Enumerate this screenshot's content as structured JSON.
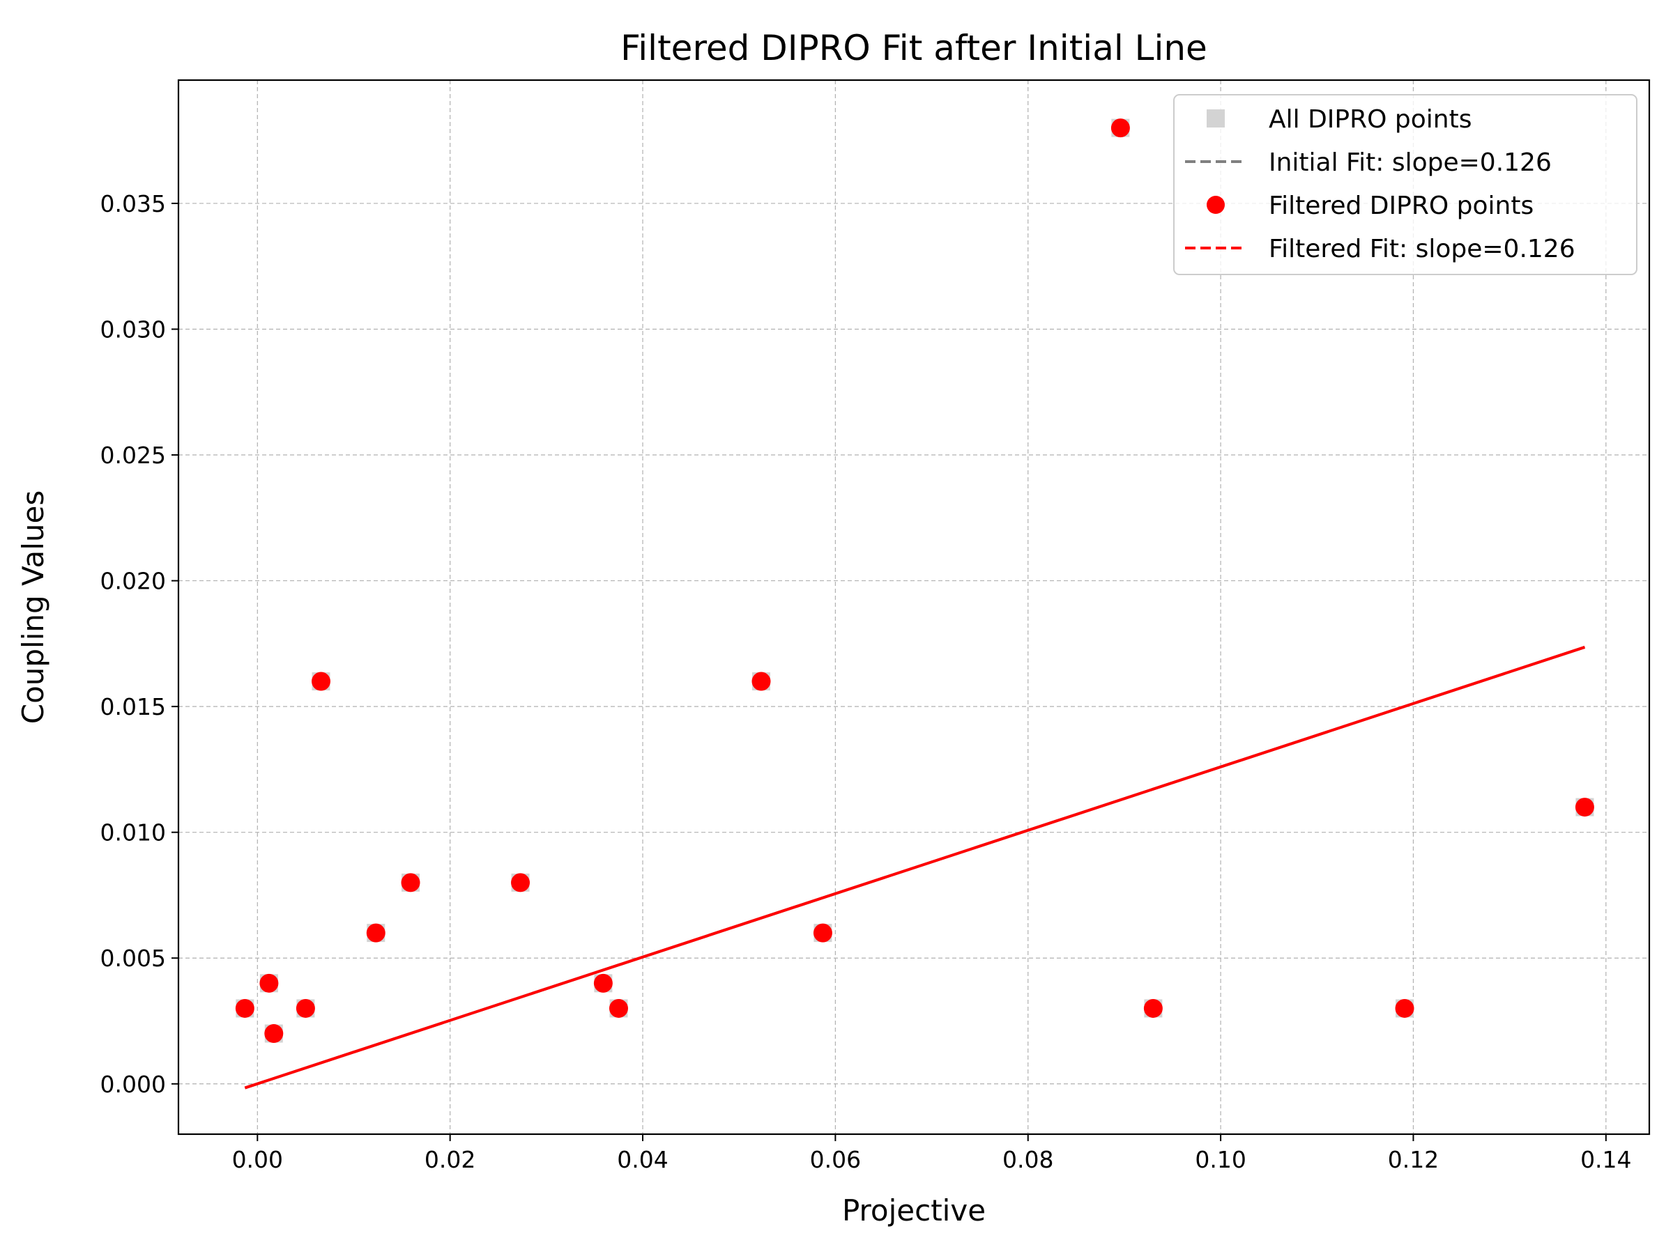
{
  "chart_data": {
    "type": "scatter",
    "title": "Filtered DIPRO Fit after Initial Line",
    "xlabel": "Projective",
    "ylabel": "Coupling Values",
    "xlim": [
      -0.0082,
      0.1445
    ],
    "ylim": [
      -0.002,
      0.0399
    ],
    "xticks": [
      0.0,
      0.02,
      0.04,
      0.06,
      0.08,
      0.1,
      0.12,
      0.14
    ],
    "xtick_labels": [
      "0.00",
      "0.02",
      "0.04",
      "0.06",
      "0.08",
      "0.10",
      "0.12",
      "0.14"
    ],
    "yticks": [
      0.0,
      0.005,
      0.01,
      0.015,
      0.02,
      0.025,
      0.03,
      0.035
    ],
    "ytick_labels": [
      "0.000",
      "0.005",
      "0.010",
      "0.015",
      "0.020",
      "0.025",
      "0.030",
      "0.035"
    ],
    "grid": true,
    "legend_position": "top-right",
    "legend": [
      {
        "label": "All DIPRO points",
        "kind": "square-marker",
        "color": "#d3d3d3"
      },
      {
        "label": "Initial Fit: slope=0.126",
        "kind": "dashed-line",
        "color": "#808080"
      },
      {
        "label": "Filtered DIPRO points",
        "kind": "circle-marker",
        "color": "#ff0000"
      },
      {
        "label": "Filtered Fit: slope=0.126",
        "kind": "dashed-line",
        "color": "#ff0000"
      }
    ],
    "series": [
      {
        "name": "All DIPRO points",
        "color": "#d3d3d3",
        "points": [
          [
            -0.0013,
            0.003
          ],
          [
            0.0012,
            0.004
          ],
          [
            0.0017,
            0.002
          ],
          [
            0.005,
            0.003
          ],
          [
            0.0066,
            0.016
          ],
          [
            0.0123,
            0.006
          ],
          [
            0.0159,
            0.008
          ],
          [
            0.0273,
            0.008
          ],
          [
            0.0359,
            0.004
          ],
          [
            0.0375,
            0.003
          ],
          [
            0.0523,
            0.016
          ],
          [
            0.0587,
            0.006
          ],
          [
            0.0896,
            0.038
          ],
          [
            0.093,
            0.003
          ],
          [
            0.1191,
            0.003
          ],
          [
            0.1378,
            0.011
          ]
        ]
      },
      {
        "name": "Initial Fit: slope=0.126",
        "color": "#808080",
        "line": [
          [
            -0.0013,
            -0.00016
          ],
          [
            0.1378,
            0.01736
          ]
        ]
      },
      {
        "name": "Filtered DIPRO points",
        "color": "#ff0000",
        "points": [
          [
            -0.0013,
            0.003
          ],
          [
            0.0012,
            0.004
          ],
          [
            0.0017,
            0.002
          ],
          [
            0.005,
            0.003
          ],
          [
            0.0066,
            0.016
          ],
          [
            0.0123,
            0.006
          ],
          [
            0.0159,
            0.008
          ],
          [
            0.0273,
            0.008
          ],
          [
            0.0359,
            0.004
          ],
          [
            0.0375,
            0.003
          ],
          [
            0.0523,
            0.016
          ],
          [
            0.0587,
            0.006
          ],
          [
            0.0896,
            0.038
          ],
          [
            0.093,
            0.003
          ],
          [
            0.1191,
            0.003
          ],
          [
            0.1378,
            0.011
          ]
        ]
      },
      {
        "name": "Filtered Fit: slope=0.126",
        "color": "#ff0000",
        "line": [
          [
            -0.0013,
            -0.00016
          ],
          [
            0.1378,
            0.01736
          ]
        ]
      }
    ]
  }
}
